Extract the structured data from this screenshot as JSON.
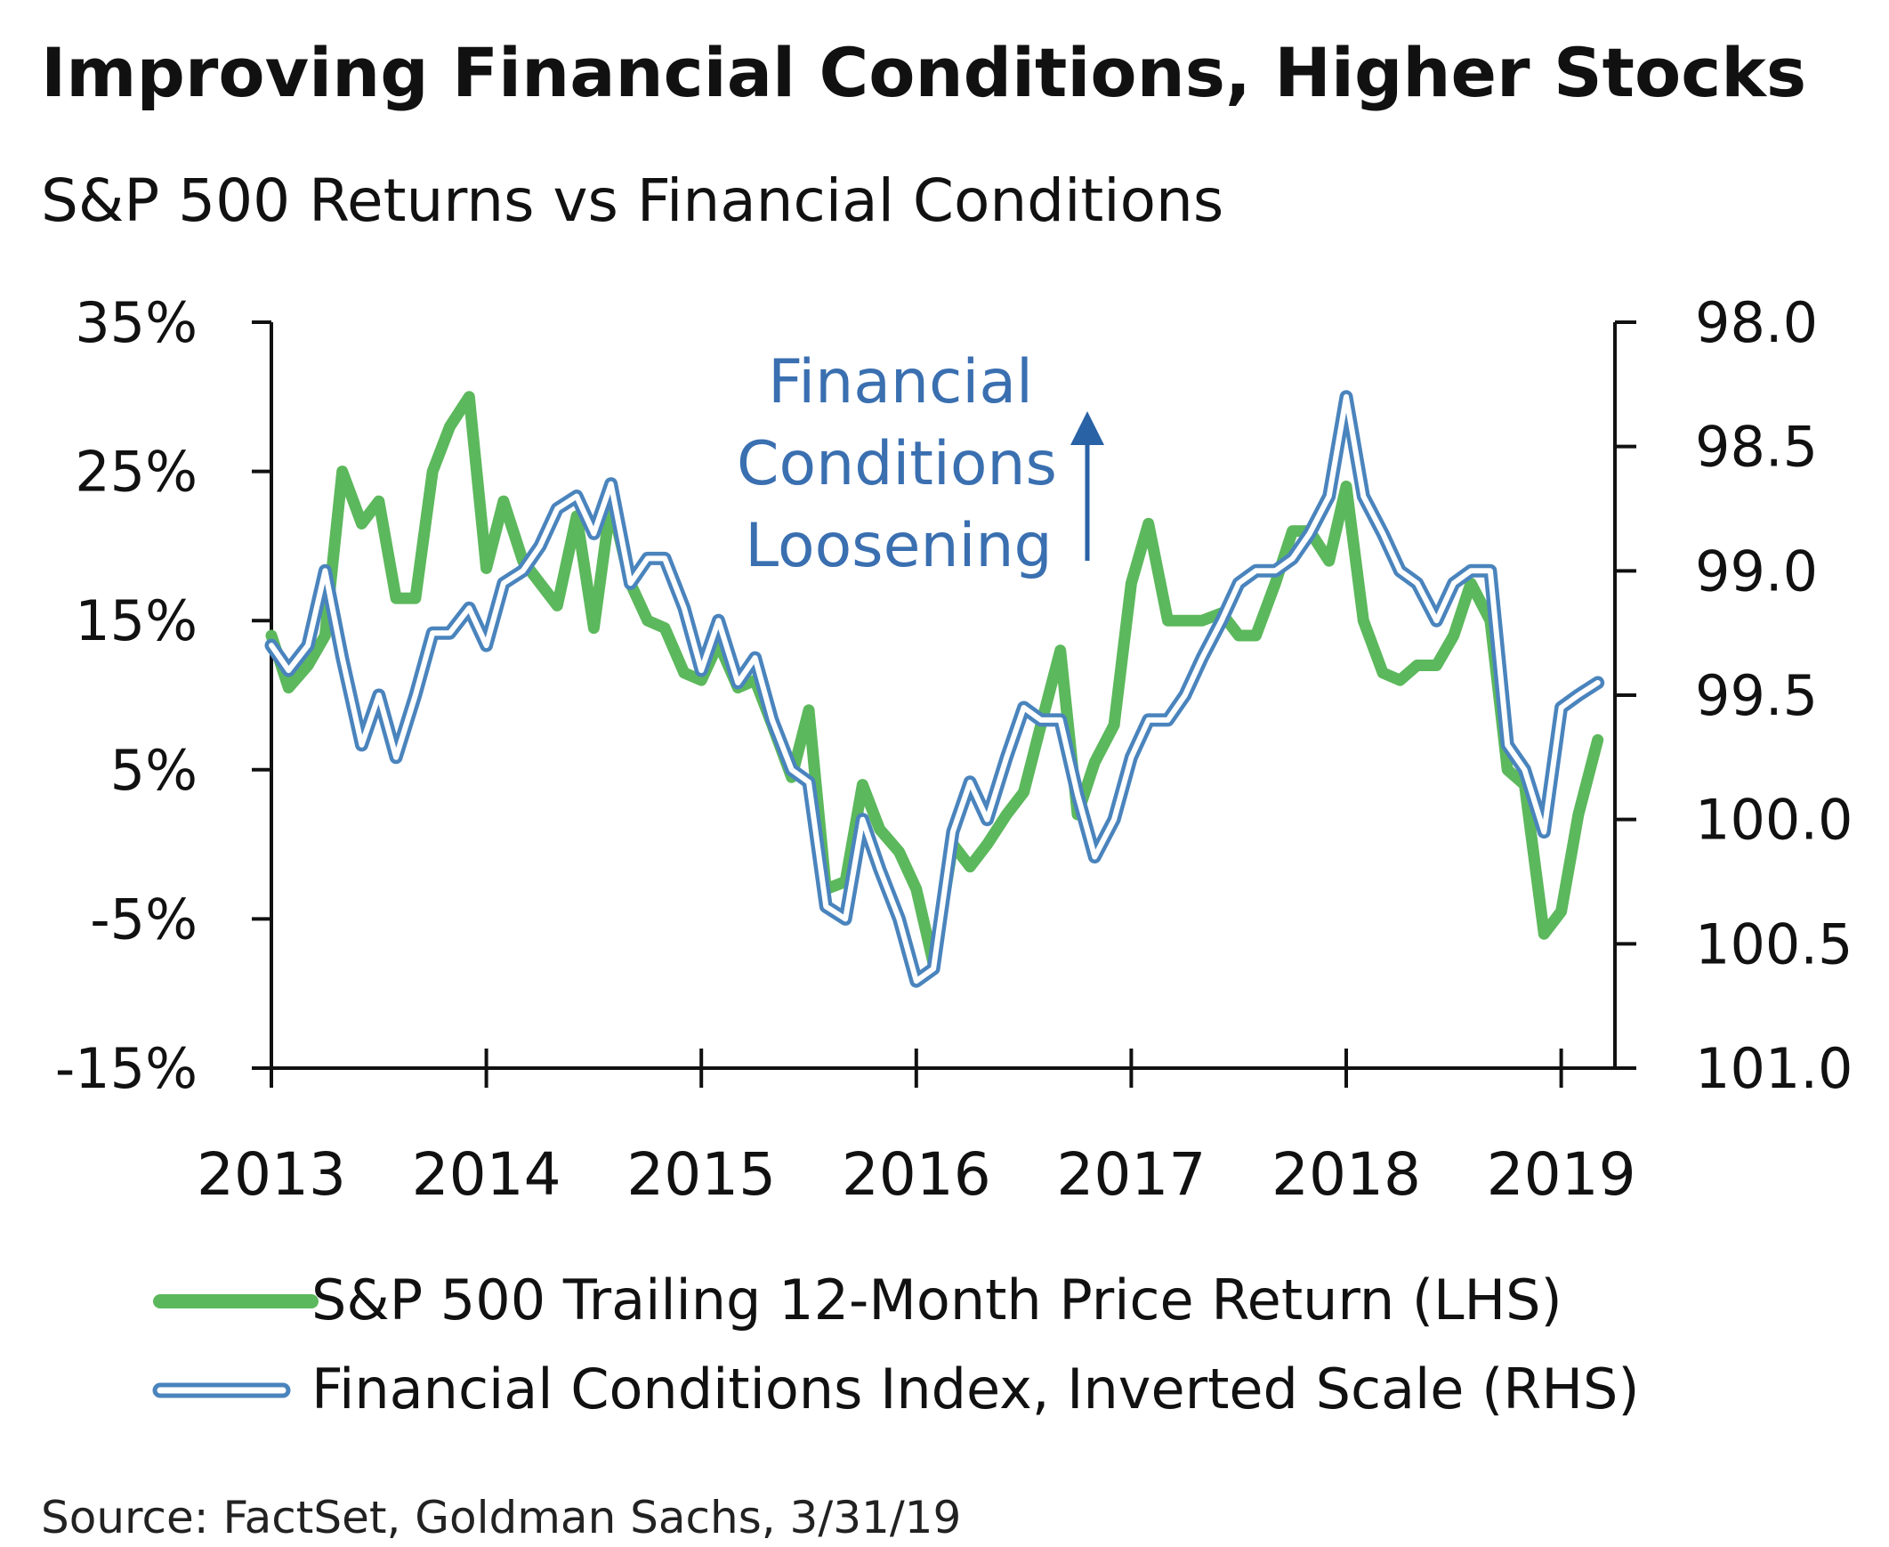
{
  "colors": {
    "sp500": "#5cb85c",
    "fci_outer": "#4a84bd",
    "fci_inner": "#ffffff",
    "annotation_text": "#3a6fb0",
    "annotation_arrow": "#2a62a6",
    "axis": "#111111"
  },
  "chart_data": {
    "type": "line",
    "title": "Improving Financial Conditions, Higher Stocks",
    "subtitle": "S&P 500 Returns vs Financial Conditions",
    "source": "Source: FactSet, Goldman Sachs, 3/31/19",
    "annotation": {
      "lines": [
        "Financial",
        "Conditions",
        "Loosening"
      ],
      "arrow": "up"
    },
    "x_ticks": [
      2013,
      2014,
      2015,
      2016,
      2017,
      2018,
      2019
    ],
    "xlim": [
      2013.0,
      2019.25
    ],
    "y_left": {
      "label": "",
      "ticks": [
        "35%",
        "25%",
        "15%",
        "5%",
        "-5%",
        "-15%"
      ],
      "tick_values": [
        35,
        25,
        15,
        5,
        -5,
        -15
      ],
      "range": [
        -15,
        35
      ],
      "unit": "%"
    },
    "y_right": {
      "label": "",
      "ticks": [
        "98.0",
        "98.5",
        "99.0",
        "99.5",
        "100.0",
        "100.5",
        "101.0"
      ],
      "tick_values": [
        98.0,
        98.5,
        99.0,
        99.5,
        100.0,
        100.5,
        101.0
      ],
      "range": [
        98.0,
        101.0
      ],
      "inverted": true
    },
    "legend_position": "bottom",
    "grid": false,
    "series": [
      {
        "name": "S&P 500 Trailing 12-Month Price Return (LHS)",
        "axis": "left",
        "style": "solid",
        "points": [
          [
            2013.0,
            14
          ],
          [
            2013.08,
            10.5
          ],
          [
            2013.17,
            12
          ],
          [
            2013.25,
            14
          ],
          [
            2013.33,
            25
          ],
          [
            2013.42,
            21.5
          ],
          [
            2013.5,
            23
          ],
          [
            2013.58,
            16.5
          ],
          [
            2013.67,
            16.5
          ],
          [
            2013.75,
            25
          ],
          [
            2013.83,
            28
          ],
          [
            2013.92,
            30
          ],
          [
            2014.0,
            18.5
          ],
          [
            2014.08,
            23
          ],
          [
            2014.17,
            19
          ],
          [
            2014.25,
            17.5
          ],
          [
            2014.33,
            16
          ],
          [
            2014.42,
            22
          ],
          [
            2014.5,
            14.5
          ],
          [
            2014.58,
            23
          ],
          [
            2014.67,
            17.5
          ],
          [
            2014.75,
            15
          ],
          [
            2014.83,
            14.5
          ],
          [
            2014.92,
            11.5
          ],
          [
            2015.0,
            11
          ],
          [
            2015.08,
            13.5
          ],
          [
            2015.17,
            10.5
          ],
          [
            2015.25,
            11
          ],
          [
            2015.33,
            8
          ],
          [
            2015.42,
            4.5
          ],
          [
            2015.5,
            9
          ],
          [
            2015.58,
            -3
          ],
          [
            2015.67,
            -2.5
          ],
          [
            2015.75,
            4
          ],
          [
            2015.83,
            1
          ],
          [
            2015.92,
            -0.5
          ],
          [
            2016.0,
            -3
          ],
          [
            2016.08,
            -8
          ],
          [
            2016.17,
            0
          ],
          [
            2016.25,
            -1.5
          ],
          [
            2016.33,
            0
          ],
          [
            2016.42,
            2
          ],
          [
            2016.5,
            3.5
          ],
          [
            2016.58,
            8
          ],
          [
            2016.67,
            13
          ],
          [
            2016.75,
            2
          ],
          [
            2016.83,
            5.5
          ],
          [
            2016.92,
            8
          ],
          [
            2017.0,
            17.5
          ],
          [
            2017.08,
            21.5
          ],
          [
            2017.17,
            15
          ],
          [
            2017.25,
            15
          ],
          [
            2017.33,
            15
          ],
          [
            2017.42,
            15.5
          ],
          [
            2017.5,
            14
          ],
          [
            2017.58,
            14
          ],
          [
            2017.67,
            17.5
          ],
          [
            2017.75,
            21
          ],
          [
            2017.83,
            21
          ],
          [
            2017.92,
            19
          ],
          [
            2018.0,
            24
          ],
          [
            2018.08,
            15
          ],
          [
            2018.17,
            11.5
          ],
          [
            2018.25,
            11
          ],
          [
            2018.33,
            12
          ],
          [
            2018.42,
            12
          ],
          [
            2018.5,
            14
          ],
          [
            2018.58,
            17.5
          ],
          [
            2018.67,
            15
          ],
          [
            2018.75,
            5
          ],
          [
            2018.83,
            4
          ],
          [
            2018.92,
            -6
          ],
          [
            2019.0,
            -4.5
          ],
          [
            2019.08,
            2
          ],
          [
            2019.17,
            7
          ]
        ]
      },
      {
        "name": "Financial Conditions Index, Inverted Scale (RHS)",
        "axis": "right",
        "style": "double",
        "points": [
          [
            2013.0,
            99.3
          ],
          [
            2013.08,
            99.4
          ],
          [
            2013.17,
            99.3
          ],
          [
            2013.25,
            99.0
          ],
          [
            2013.33,
            99.35
          ],
          [
            2013.42,
            99.7
          ],
          [
            2013.5,
            99.5
          ],
          [
            2013.58,
            99.75
          ],
          [
            2013.67,
            99.5
          ],
          [
            2013.75,
            99.25
          ],
          [
            2013.83,
            99.25
          ],
          [
            2013.92,
            99.15
          ],
          [
            2014.0,
            99.3
          ],
          [
            2014.08,
            99.05
          ],
          [
            2014.17,
            99.0
          ],
          [
            2014.25,
            98.9
          ],
          [
            2014.33,
            98.75
          ],
          [
            2014.42,
            98.7
          ],
          [
            2014.5,
            98.85
          ],
          [
            2014.58,
            98.65
          ],
          [
            2014.67,
            99.05
          ],
          [
            2014.75,
            98.95
          ],
          [
            2014.83,
            98.95
          ],
          [
            2014.92,
            99.15
          ],
          [
            2015.0,
            99.4
          ],
          [
            2015.08,
            99.2
          ],
          [
            2015.17,
            99.45
          ],
          [
            2015.25,
            99.35
          ],
          [
            2015.33,
            99.6
          ],
          [
            2015.42,
            99.8
          ],
          [
            2015.5,
            99.85
          ],
          [
            2015.58,
            100.35
          ],
          [
            2015.67,
            100.4
          ],
          [
            2015.75,
            100.0
          ],
          [
            2015.83,
            100.2
          ],
          [
            2015.92,
            100.4
          ],
          [
            2016.0,
            100.65
          ],
          [
            2016.08,
            100.6
          ],
          [
            2016.17,
            100.05
          ],
          [
            2016.25,
            99.85
          ],
          [
            2016.33,
            100.0
          ],
          [
            2016.42,
            99.75
          ],
          [
            2016.5,
            99.55
          ],
          [
            2016.58,
            99.6
          ],
          [
            2016.67,
            99.6
          ],
          [
            2016.75,
            99.9
          ],
          [
            2016.83,
            100.15
          ],
          [
            2016.92,
            100.0
          ],
          [
            2017.0,
            99.75
          ],
          [
            2017.08,
            99.6
          ],
          [
            2017.17,
            99.6
          ],
          [
            2017.25,
            99.5
          ],
          [
            2017.33,
            99.35
          ],
          [
            2017.42,
            99.2
          ],
          [
            2017.5,
            99.05
          ],
          [
            2017.58,
            99.0
          ],
          [
            2017.67,
            99.0
          ],
          [
            2017.75,
            98.95
          ],
          [
            2017.83,
            98.85
          ],
          [
            2017.92,
            98.7
          ],
          [
            2018.0,
            98.3
          ],
          [
            2018.08,
            98.7
          ],
          [
            2018.17,
            98.85
          ],
          [
            2018.25,
            99.0
          ],
          [
            2018.33,
            99.05
          ],
          [
            2018.42,
            99.2
          ],
          [
            2018.5,
            99.05
          ],
          [
            2018.58,
            99.0
          ],
          [
            2018.67,
            99.0
          ],
          [
            2018.75,
            99.7
          ],
          [
            2018.83,
            99.8
          ],
          [
            2018.92,
            100.05
          ],
          [
            2019.0,
            99.55
          ],
          [
            2019.08,
            99.5
          ],
          [
            2019.17,
            99.45
          ]
        ]
      }
    ]
  }
}
